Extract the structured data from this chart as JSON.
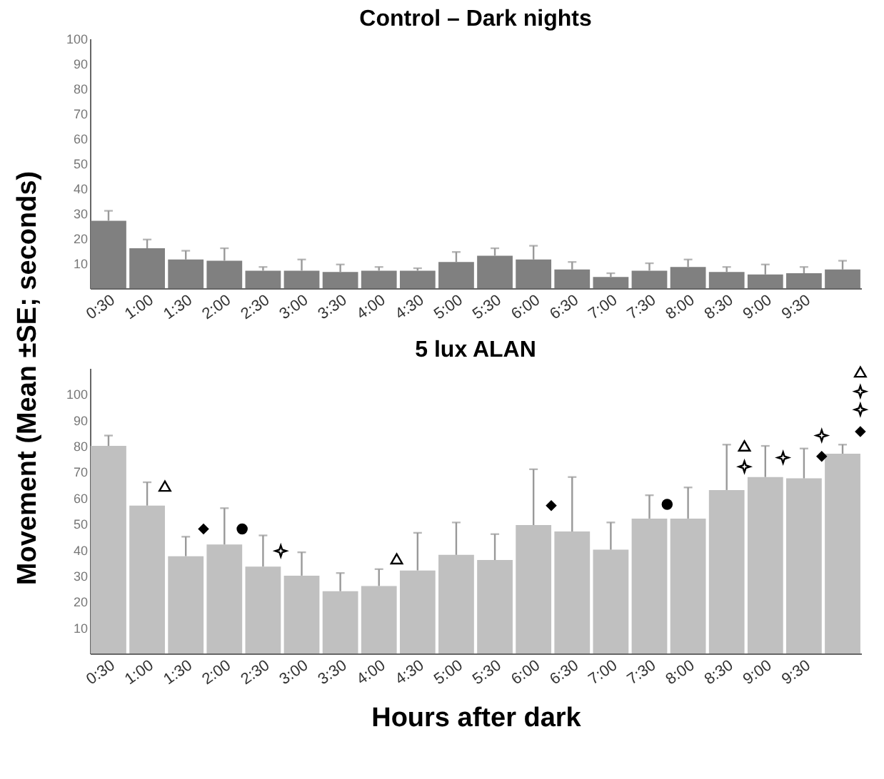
{
  "chart_data": [
    {
      "type": "bar",
      "title": "Control – Dark nights",
      "ylabel": "Movement (Mean ±SE; seconds)",
      "categories": [
        "0:30",
        "1:00",
        "1:30",
        "2:00",
        "2:30",
        "3:00",
        "3:30",
        "4:00",
        "4:30",
        "5:00",
        "5:30",
        "6:00",
        "6:30",
        "7:00",
        "7:30",
        "8:00",
        "8:30",
        "9:00",
        "9:30",
        null
      ],
      "values": [
        27,
        16,
        11.5,
        11,
        7,
        7,
        6.5,
        7,
        7,
        10.5,
        13,
        11.5,
        7.5,
        4.5,
        7,
        8.5,
        6.5,
        5.5,
        6,
        7.5
      ],
      "errors": [
        [
          27,
          31
        ],
        [
          16,
          19.5
        ],
        [
          11.5,
          15
        ],
        [
          11,
          16
        ],
        [
          7,
          8.5
        ],
        [
          7,
          11.5
        ],
        [
          6.5,
          9.5
        ],
        [
          7,
          8.5
        ],
        [
          7,
          8
        ],
        [
          10.5,
          14.5
        ],
        [
          13,
          16
        ],
        [
          11.5,
          17
        ],
        [
          7.5,
          10.5
        ],
        [
          4.5,
          6
        ],
        [
          7,
          10
        ],
        [
          8.5,
          11.5
        ],
        [
          6.5,
          8.5
        ],
        [
          5.5,
          9.5
        ],
        [
          6,
          8.5
        ],
        [
          7.5,
          11
        ]
      ],
      "color": "#808080",
      "ylim": [
        0,
        100
      ],
      "yticks": [
        10,
        20,
        30,
        40,
        50,
        60,
        70,
        80,
        90,
        100
      ]
    },
    {
      "type": "bar",
      "title": "5 lux ALAN",
      "xlabel": "Hours after dark",
      "categories": [
        "0:30",
        "1:00",
        "1:30",
        "2:00",
        "2:30",
        "3:00",
        "3:30",
        "4:00",
        "4:30",
        "5:00",
        "5:30",
        "6:00",
        "6:30",
        "7:00",
        "7:30",
        "8:00",
        "8:30",
        "9:00",
        "9:30",
        null
      ],
      "series": [
        {
          "color": "#c0c0c0",
          "values": [
            80,
            57,
            37.5,
            42,
            33.5,
            30,
            24,
            26,
            32,
            38,
            36,
            49.5,
            47,
            40,
            52,
            52,
            63,
            68,
            67.5,
            77
          ],
          "errors": [
            [
              80,
              84
            ],
            [
              57,
              66
            ],
            [
              37.5,
              45
            ],
            [
              42,
              56
            ],
            [
              33.5,
              45.5
            ],
            [
              30,
              39
            ],
            [
              24,
              31
            ],
            [
              26,
              32.5
            ],
            [
              32,
              46.5
            ],
            [
              38,
              50.5
            ],
            [
              36,
              46
            ],
            [
              49.5,
              71
            ],
            [
              47,
              68
            ],
            [
              40,
              50.5
            ],
            [
              52,
              61
            ],
            [
              52,
              64
            ],
            [
              63,
              80.5
            ],
            [
              68,
              80
            ],
            [
              67.5,
              79
            ],
            [
              77,
              80.5
            ]
          ]
        },
        {
          "type": "scatter",
          "marker": "triangle",
          "color": "#000000",
          "x": [
            "1:00",
            "4:00",
            "8:30",
            null
          ],
          "values": [
            64.5,
            36.5,
            80,
            108.5
          ]
        },
        {
          "type": "scatter",
          "marker": "diamond",
          "color": "#000000",
          "x": [
            "1:30",
            "6:00",
            "9:30",
            null
          ],
          "values": [
            48,
            57,
            76,
            85.5
          ]
        },
        {
          "type": "scatter",
          "marker": "circle",
          "color": "#000000",
          "x": [
            "2:00",
            "7:30"
          ],
          "values": [
            48,
            57.5
          ]
        },
        {
          "type": "scatter",
          "marker": "star",
          "color": "#000000",
          "x": [
            "2:30",
            "8:30",
            "9:00",
            "9:30",
            null,
            null
          ],
          "values": [
            39.5,
            72,
            75.5,
            84,
            101,
            94
          ]
        }
      ],
      "ylim": [
        0,
        110
      ],
      "yticks": [
        10,
        20,
        30,
        40,
        50,
        60,
        70,
        80,
        90,
        100
      ]
    }
  ]
}
